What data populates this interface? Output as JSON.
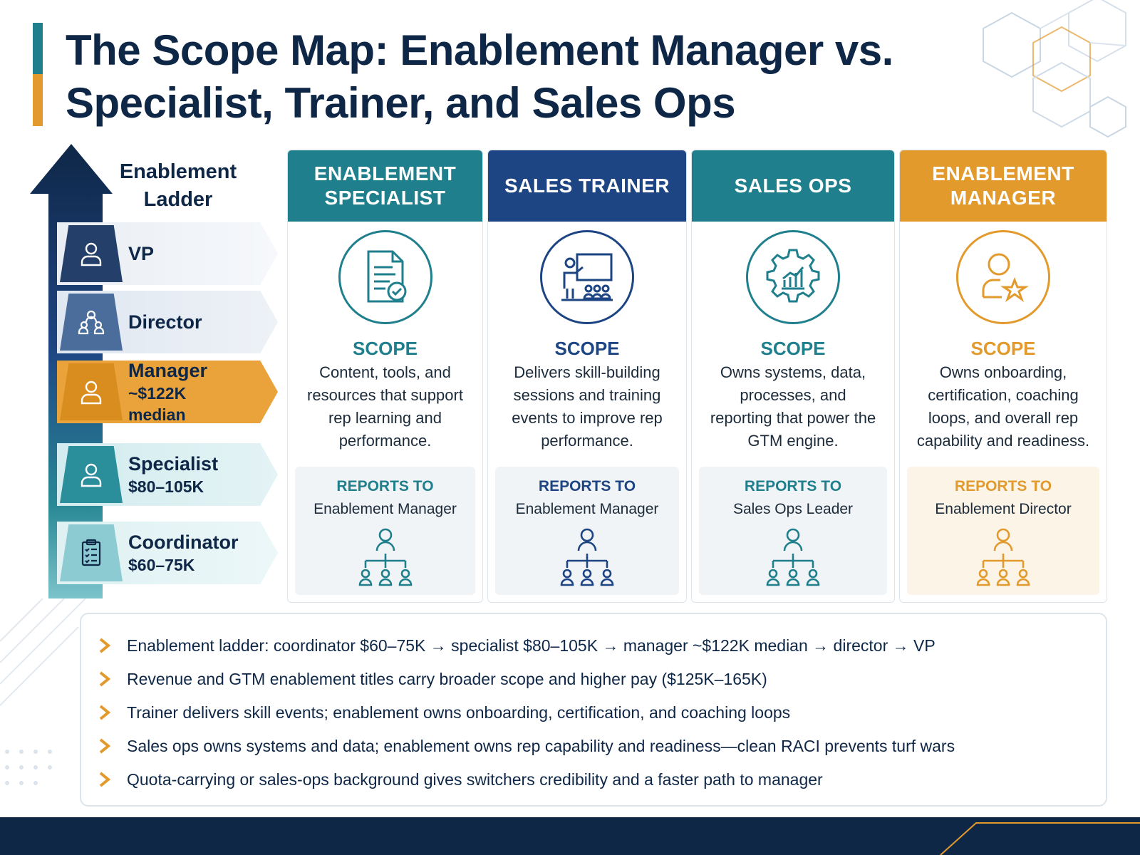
{
  "title": "The Scope Map: Enablement Manager vs. Specialist, Trainer, and Sales Ops",
  "colors": {
    "navy": "#0f2747",
    "teal": "#1f7f8c",
    "blue": "#1d4583",
    "orange": "#e39a2d"
  },
  "ladder": {
    "heading": "Enablement Ladder",
    "rungs": [
      {
        "name": "VP",
        "pay": "",
        "icon": "person-icon"
      },
      {
        "name": "Director",
        "pay": "",
        "icon": "team-icon"
      },
      {
        "name": "Manager",
        "pay": "~$122K median",
        "icon": "person-icon"
      },
      {
        "name": "Specialist",
        "pay": "$80–105K",
        "icon": "person-icon"
      },
      {
        "name": "Coordinator",
        "pay": "$60–75K",
        "icon": "clipboard-icon"
      }
    ]
  },
  "columns": [
    {
      "title": "ENABLEMENT SPECIALIST",
      "icon": "document-check-icon",
      "scope_heading": "SCOPE",
      "scope_text": "Content, tools, and resources that support rep learning and performance.",
      "reports_heading": "REPORTS TO",
      "reports_text": "Enablement Manager"
    },
    {
      "title": "SALES TRAINER",
      "icon": "presenter-icon",
      "scope_heading": "SCOPE",
      "scope_text": "Delivers skill-building sessions and training events to improve rep performance.",
      "reports_heading": "REPORTS TO",
      "reports_text": "Enablement Manager"
    },
    {
      "title": "SALES OPS",
      "icon": "gear-chart-icon",
      "scope_heading": "SCOPE",
      "scope_text": "Owns systems, data, processes, and reporting that power the GTM engine.",
      "reports_heading": "REPORTS TO",
      "reports_text": "Sales Ops Leader"
    },
    {
      "title": "ENABLEMENT MANAGER",
      "icon": "person-star-icon",
      "scope_heading": "SCOPE",
      "scope_text": "Owns onboarding, certification, coaching loops, and overall rep capability and readiness.",
      "reports_heading": "REPORTS TO",
      "reports_text": "Enablement Director"
    }
  ],
  "bullets": [
    "Enablement ladder: coordinator $60–75K → specialist $80–105K → manager ~$122K median → director → VP",
    "Revenue and GTM enablement titles carry broader scope and higher pay ($125K–165K)",
    "Trainer delivers skill events; enablement owns onboarding, certification, and coaching loops",
    "Sales ops owns systems and data; enablement owns rep capability and readiness—clean RACI prevents turf wars",
    "Quota-carrying or sales-ops background gives switchers credibility and a faster path to manager"
  ]
}
